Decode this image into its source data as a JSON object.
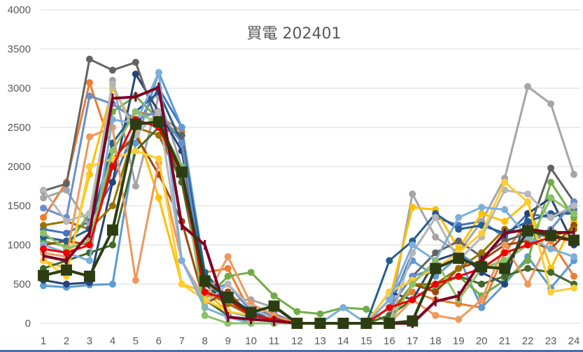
{
  "chart_data": {
    "type": "line",
    "title": "買電 202401",
    "xlabel": "",
    "ylabel": "",
    "x": [
      1,
      2,
      3,
      4,
      5,
      6,
      7,
      8,
      9,
      10,
      11,
      12,
      13,
      14,
      15,
      16,
      17,
      18,
      19,
      20,
      21,
      22,
      23,
      24
    ],
    "ylim": [
      0,
      4000
    ],
    "yticks": [
      0,
      500,
      1000,
      1500,
      2000,
      2500,
      3000,
      3500,
      4000
    ],
    "grid": true,
    "legend": "none",
    "series": [
      {
        "color": "#4472c4",
        "values": [
          1200,
          1150,
          1300,
          1800,
          2500,
          3000,
          2500,
          600,
          350,
          150,
          120,
          0,
          0,
          0,
          0,
          200,
          900,
          1350,
          1250,
          1300,
          1100,
          1400,
          1350,
          1450
        ]
      },
      {
        "color": "#ed7d31",
        "values": [
          1350,
          1800,
          3070,
          2200,
          2700,
          2650,
          2450,
          650,
          700,
          120,
          80,
          0,
          0,
          0,
          0,
          200,
          400,
          300,
          250,
          200,
          900,
          1300,
          1050,
          600
        ]
      },
      {
        "color": "#a5a5a5",
        "values": [
          1600,
          1700,
          1250,
          3100,
          1750,
          2900,
          2000,
          550,
          300,
          300,
          200,
          0,
          0,
          0,
          0,
          100,
          1650,
          1100,
          900,
          1300,
          1850,
          3020,
          2800,
          1900
        ]
      },
      {
        "color": "#ffc000",
        "values": [
          800,
          700,
          1900,
          3000,
          2500,
          1600,
          500,
          400,
          150,
          80,
          50,
          0,
          0,
          0,
          0,
          300,
          1480,
          1450,
          950,
          1400,
          1300,
          1550,
          700,
          1300
        ]
      },
      {
        "color": "#5b9bd5",
        "values": [
          480,
          460,
          490,
          500,
          2300,
          3200,
          2500,
          650,
          150,
          80,
          50,
          0,
          0,
          0,
          0,
          300,
          800,
          600,
          850,
          200,
          500,
          850,
          450,
          800
        ]
      },
      {
        "color": "#70ad47",
        "values": [
          1050,
          980,
          1400,
          2700,
          2900,
          2600,
          2400,
          300,
          600,
          650,
          350,
          150,
          120,
          200,
          180,
          0,
          500,
          450,
          600,
          350,
          550,
          800,
          1800,
          1350
        ]
      },
      {
        "color": "#264478",
        "values": [
          550,
          500,
          520,
          1800,
          3180,
          2700,
          2200,
          500,
          250,
          100,
          50,
          0,
          0,
          0,
          0,
          400,
          300,
          800,
          900,
          650,
          500,
          1400,
          1600,
          1000
        ]
      },
      {
        "color": "#9e480e",
        "values": [
          1000,
          1050,
          1000,
          2100,
          2400,
          1900,
          1300,
          250,
          400,
          100,
          50,
          0,
          0,
          0,
          0,
          0,
          500,
          400,
          700,
          800,
          1000,
          1050,
          950,
          1250
        ]
      },
      {
        "color": "#636363",
        "values": [
          1690,
          1780,
          3370,
          3230,
          3330,
          2500,
          2400,
          550,
          300,
          120,
          100,
          0,
          0,
          0,
          0,
          200,
          600,
          900,
          1050,
          850,
          1050,
          1150,
          1980,
          1550
        ]
      },
      {
        "color": "#997300",
        "values": [
          1250,
          1300,
          1200,
          1500,
          2500,
          2400,
          1800,
          400,
          250,
          100,
          50,
          0,
          0,
          0,
          0,
          100,
          500,
          500,
          700,
          900,
          1200,
          1150,
          1100,
          1200
        ]
      },
      {
        "color": "#255e91",
        "values": [
          1100,
          1050,
          1200,
          2300,
          2700,
          2950,
          2300,
          650,
          300,
          120,
          80,
          0,
          0,
          0,
          0,
          800,
          1050,
          1400,
          1200,
          1250,
          1150,
          1300,
          1400,
          1400
        ]
      },
      {
        "color": "#43682b",
        "values": [
          700,
          800,
          900,
          1000,
          2200,
          2500,
          1800,
          300,
          100,
          0,
          0,
          0,
          0,
          0,
          0,
          100,
          300,
          500,
          600,
          500,
          600,
          700,
          650,
          500
        ]
      },
      {
        "color": "#698ed0",
        "values": [
          1470,
          1350,
          2900,
          2800,
          2600,
          2700,
          2300,
          400,
          500,
          150,
          100,
          0,
          0,
          0,
          0,
          200,
          600,
          700,
          900,
          700,
          800,
          1000,
          1200,
          1550
        ]
      },
      {
        "color": "#f1975a",
        "values": [
          900,
          850,
          2380,
          2500,
          550,
          2050,
          800,
          300,
          850,
          250,
          100,
          0,
          0,
          0,
          0,
          0,
          300,
          100,
          50,
          300,
          1000,
          500,
          1100,
          1050
        ]
      },
      {
        "color": "#b7b7b7",
        "values": [
          1700,
          1300,
          1400,
          3050,
          2400,
          2700,
          800,
          250,
          500,
          200,
          50,
          0,
          0,
          0,
          0,
          0,
          900,
          1350,
          800,
          1100,
          1700,
          1650,
          1350,
          1500
        ]
      },
      {
        "color": "#ffcd33",
        "values": [
          800,
          600,
          2000,
          2100,
          2200,
          2100,
          500,
          300,
          150,
          100,
          50,
          0,
          0,
          0,
          0,
          400,
          550,
          700,
          900,
          1150,
          1800,
          1550,
          400,
          450
        ]
      },
      {
        "color": "#7cafdd",
        "values": [
          1000,
          900,
          800,
          2600,
          2550,
          3200,
          800,
          200,
          80,
          0,
          0,
          0,
          0,
          200,
          0,
          300,
          1000,
          800,
          1350,
          1480,
          1450,
          1100,
          950,
          850
        ]
      },
      {
        "color": "#8cc168",
        "values": [
          1150,
          950,
          1050,
          2200,
          2700,
          2550,
          2000,
          100,
          0,
          0,
          0,
          0,
          0,
          0,
          0,
          0,
          500,
          800,
          300,
          700,
          800,
          1000,
          1600,
          1400
        ]
      },
      {
        "color": "#ee0000",
        "values": [
          950,
          900,
          1000,
          2000,
          2600,
          2500,
          1900,
          400,
          300,
          100,
          50,
          0,
          0,
          0,
          0,
          200,
          300,
          500,
          600,
          700,
          900,
          1000,
          1100,
          1050
        ]
      },
      {
        "color": "#7f0025",
        "values": [
          860,
          800,
          1150,
          2870,
          2890,
          3010,
          1250,
          1000,
          80,
          50,
          30,
          0,
          0,
          0,
          0,
          0,
          0,
          280,
          350,
          800,
          1150,
          1200,
          1160,
          1160
        ]
      },
      {
        "color": "#2c3d12",
        "values": [
          610,
          680,
          600,
          1190,
          2540,
          2570,
          1930,
          540,
          330,
          140,
          220,
          0,
          0,
          0,
          0,
          0,
          30,
          700,
          830,
          720,
          700,
          1180,
          1120,
          1060
        ]
      }
    ]
  }
}
